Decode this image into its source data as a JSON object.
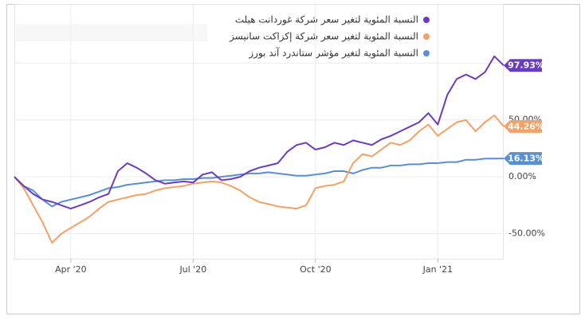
{
  "chart_data": {
    "type": "line",
    "categories": [
      null,
      null,
      null,
      null,
      null,
      null,
      "Apr '20",
      null,
      null,
      null,
      null,
      null,
      null,
      null,
      null,
      null,
      null,
      null,
      null,
      "Jul '20",
      null,
      null,
      null,
      null,
      null,
      null,
      null,
      null,
      null,
      null,
      null,
      null,
      "Oct '20",
      null,
      null,
      null,
      null,
      null,
      null,
      null,
      null,
      null,
      null,
      null,
      null,
      "Jan '21",
      null,
      null,
      null,
      null,
      null,
      null,
      null
    ],
    "series": [
      {
        "name": "النسبة المئوية لتغير سعر شركة غوردانت هيلث",
        "color": "#6a3cc3",
        "values": [
          0,
          -8,
          -15,
          -20,
          -22,
          -25,
          -28,
          -25,
          -22,
          -18,
          -15,
          5,
          12,
          8,
          3,
          -3,
          -6,
          -5,
          -4,
          -5,
          2,
          4,
          -3,
          -2,
          0,
          5,
          8,
          10,
          12,
          22,
          28,
          30,
          24,
          26,
          30,
          28,
          32,
          30,
          28,
          33,
          36,
          40,
          44,
          48,
          56,
          46,
          72,
          86,
          90,
          86,
          92,
          106,
          97.93
        ],
        "value_labels": [
          null,
          null,
          null,
          null,
          null,
          null,
          null,
          null,
          null,
          null,
          null,
          null,
          null,
          null,
          null,
          null,
          null,
          null,
          null,
          null,
          null,
          null,
          null,
          null,
          null,
          null,
          null,
          null,
          null,
          null,
          null,
          null,
          null,
          null,
          null,
          null,
          null,
          null,
          null,
          null,
          null,
          null,
          null,
          null,
          null,
          null,
          null,
          null,
          null,
          null,
          null,
          null,
          "97.93%"
        ]
      },
      {
        "name": "النسبة المئوية لتغير سعر شركة إكزاكت سانيسز",
        "color": "#f6a066",
        "values": [
          0,
          -10,
          -25,
          -40,
          -58,
          -50,
          -45,
          -40,
          -35,
          -28,
          -22,
          -20,
          -18,
          -16,
          -15,
          -12,
          -10,
          -9,
          -8,
          -6,
          -5,
          -4,
          -5,
          -8,
          -12,
          -18,
          -22,
          -24,
          -26,
          -27,
          -28,
          -25,
          -10,
          -8,
          -7,
          -4,
          12,
          20,
          18,
          24,
          30,
          28,
          32,
          40,
          46,
          36,
          42,
          48,
          50,
          40,
          48,
          54,
          44.26
        ],
        "value_labels": [
          null,
          null,
          null,
          null,
          null,
          null,
          null,
          null,
          null,
          null,
          null,
          null,
          null,
          null,
          null,
          null,
          null,
          null,
          null,
          null,
          null,
          null,
          null,
          null,
          null,
          null,
          null,
          null,
          null,
          null,
          null,
          null,
          null,
          null,
          null,
          null,
          null,
          null,
          null,
          null,
          null,
          null,
          null,
          null,
          null,
          null,
          null,
          null,
          null,
          null,
          null,
          null,
          "44.26%"
        ]
      },
      {
        "name": "النسبة المئوية لتغير مؤشر ستاندرد آند بورز",
        "color": "#5a8ed5",
        "values": [
          0,
          -8,
          -12,
          -20,
          -26,
          -22,
          -20,
          -18,
          -16,
          -13,
          -10,
          -9,
          -7,
          -6,
          -5,
          -4,
          -3,
          -3,
          -2,
          -2,
          -1,
          -1,
          0,
          1,
          2,
          3,
          3,
          4,
          3,
          2,
          1,
          1,
          2,
          3,
          5,
          5,
          3,
          6,
          8,
          8,
          10,
          10,
          11,
          11,
          12,
          12,
          13,
          13,
          15,
          15,
          16,
          16,
          16.13
        ],
        "value_labels": [
          null,
          null,
          null,
          null,
          null,
          null,
          null,
          null,
          null,
          null,
          null,
          null,
          null,
          null,
          null,
          null,
          null,
          null,
          null,
          null,
          null,
          null,
          null,
          null,
          null,
          null,
          null,
          null,
          null,
          null,
          null,
          null,
          null,
          null,
          null,
          null,
          null,
          null,
          null,
          null,
          null,
          null,
          null,
          null,
          null,
          null,
          null,
          null,
          null,
          null,
          null,
          null,
          "16.13%"
        ]
      }
    ],
    "ylim": [
      -72,
      152
    ],
    "yticks": [
      {
        "value": -50,
        "label": "-50.00%"
      },
      {
        "value": 0,
        "label": "0.00%"
      },
      {
        "value": 50,
        "label": "50.00%"
      },
      {
        "value": 100,
        "label": "100.0%"
      }
    ],
    "grid": true
  }
}
